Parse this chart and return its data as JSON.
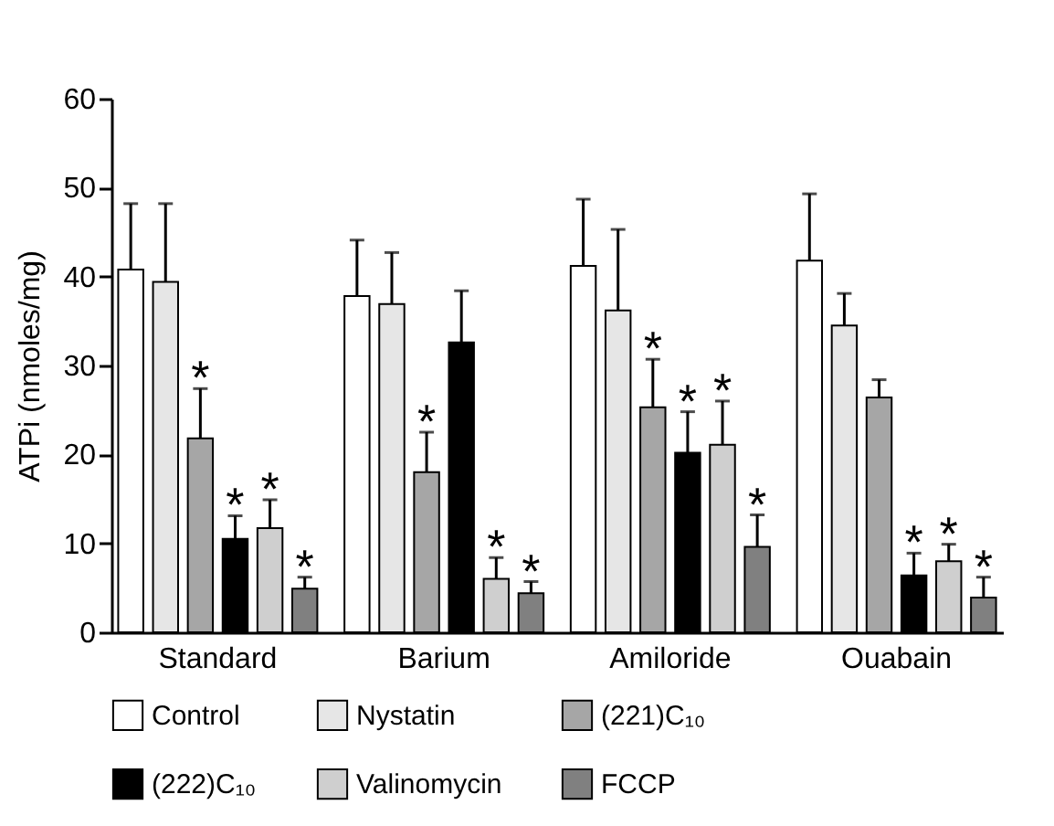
{
  "chart_data": {
    "type": "bar",
    "ylabel": "ATPi (nmoles/mg)",
    "categories": [
      "Standard",
      "Barium",
      "Amiloride",
      "Ouabain"
    ],
    "ylim": [
      0,
      60
    ],
    "yticks": [
      0,
      10,
      20,
      30,
      40,
      50,
      60
    ],
    "legend": "bottom",
    "series": [
      {
        "name": "Control",
        "color": "#ffffff",
        "values": [
          40.8,
          37.8,
          41.2,
          41.8
        ],
        "errors": [
          [
            40.8,
            48.2
          ],
          [
            37.8,
            44.1
          ],
          [
            41.2,
            48.7
          ],
          [
            41.8,
            49.3
          ]
        ],
        "value_labels": [
          null,
          null,
          null,
          null
        ]
      },
      {
        "name": "Nystatin",
        "color": "#e6e6e6",
        "values": [
          39.4,
          36.9,
          36.2,
          34.5
        ],
        "errors": [
          [
            39.4,
            48.2
          ],
          [
            36.9,
            42.7
          ],
          [
            36.2,
            45.3
          ],
          [
            34.5,
            38.1
          ]
        ],
        "value_labels": [
          null,
          null,
          null,
          null
        ]
      },
      {
        "name": "(221)C₁₀",
        "color": "#a6a6a6",
        "values": [
          21.8,
          18.0,
          25.3,
          26.4
        ],
        "errors": [
          [
            21.8,
            27.4
          ],
          [
            18.0,
            22.5
          ],
          [
            25.3,
            30.7
          ],
          [
            26.4,
            28.4
          ]
        ],
        "value_labels": [
          "*",
          "*",
          "*",
          null
        ]
      },
      {
        "name": "(222)C₁₀",
        "color": "#000000",
        "values": [
          10.5,
          32.6,
          20.2,
          6.4
        ],
        "errors": [
          [
            10.5,
            13.1
          ],
          [
            32.6,
            38.4
          ],
          [
            20.2,
            24.8
          ],
          [
            6.4,
            8.9
          ]
        ],
        "value_labels": [
          "*",
          null,
          "*",
          "*"
        ]
      },
      {
        "name": "Valinomycin",
        "color": "#cfcfcf",
        "values": [
          11.7,
          6.0,
          21.1,
          8.0
        ],
        "errors": [
          [
            11.7,
            14.9
          ],
          [
            6.0,
            8.4
          ],
          [
            21.1,
            26.0
          ],
          [
            8.0,
            9.9
          ]
        ],
        "value_labels": [
          "*",
          "*",
          "*",
          "*"
        ]
      },
      {
        "name": "FCCP",
        "color": "#808080",
        "values": [
          4.9,
          4.4,
          9.6,
          3.9
        ],
        "errors": [
          [
            4.9,
            6.2
          ],
          [
            4.4,
            5.7
          ],
          [
            9.6,
            13.2
          ],
          [
            3.9,
            6.2
          ]
        ],
        "value_labels": [
          "*",
          "*",
          "*",
          "*"
        ]
      }
    ]
  }
}
